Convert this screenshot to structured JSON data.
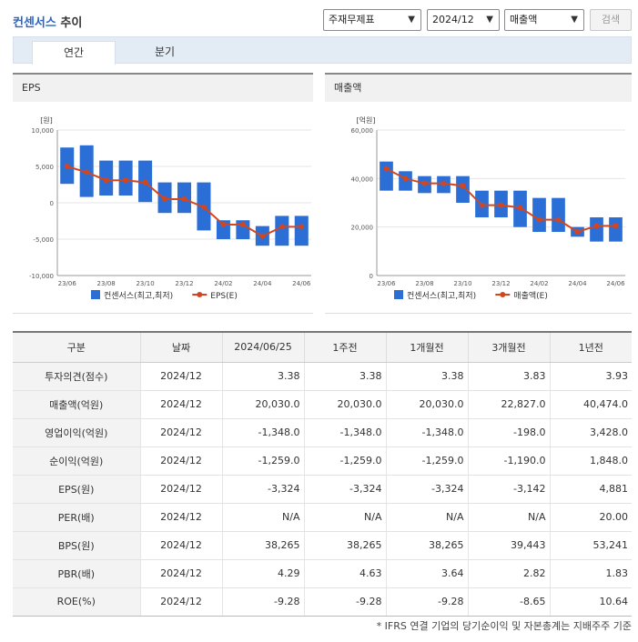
{
  "header": {
    "title_company": "컨센서스",
    "title_suffix": " 추이",
    "select_statement": "주재무제표",
    "select_period": "2024/12",
    "select_metric": "매출액",
    "search_button": "검색"
  },
  "tabs": [
    {
      "label": "연간",
      "active": true
    },
    {
      "label": "분기",
      "active": false
    }
  ],
  "charts": {
    "eps": {
      "panel_title": "EPS",
      "unit": "[원]",
      "y_ticks": [
        "10,000",
        "5,000",
        "0",
        "-5,000",
        "-10,000"
      ],
      "x_ticks": [
        "23/06",
        "23/08",
        "23/10",
        "23/12",
        "24/02",
        "24/04",
        "24/06"
      ],
      "legend_bar": "컨센서스(최고,최저)",
      "legend_line": "EPS(E)"
    },
    "sales": {
      "panel_title": "매출액",
      "unit": "[억원]",
      "y_ticks": [
        "60,000",
        "40,000",
        "20,000",
        "0"
      ],
      "x_ticks": [
        "23/06",
        "23/08",
        "23/10",
        "23/12",
        "24/02",
        "24/04",
        "24/06"
      ],
      "legend_bar": "컨센서스(최고,최저)",
      "legend_line": "매출액(E)"
    }
  },
  "chart_data": [
    {
      "type": "bar",
      "title": "EPS",
      "ylabel": "[원]",
      "ylim": [
        -10000,
        10000
      ],
      "x": [
        "23/06",
        "23/07",
        "23/08",
        "23/09",
        "23/10",
        "23/11",
        "23/12",
        "24/01",
        "24/02",
        "24/03",
        "24/04",
        "24/05",
        "24/06"
      ],
      "series": [
        {
          "name": "컨센서스(최고,최저)",
          "type": "range",
          "high": [
            7600,
            7900,
            5800,
            5800,
            5800,
            2800,
            2800,
            2800,
            -2400,
            -2400,
            -3200,
            -1800,
            -1800
          ],
          "low": [
            2600,
            800,
            1000,
            1000,
            100,
            -1400,
            -1400,
            -3800,
            -5000,
            -5000,
            -5900,
            -5900,
            -5900
          ]
        },
        {
          "name": "EPS(E)",
          "type": "line",
          "values": [
            5000,
            4200,
            3100,
            3100,
            2800,
            500,
            500,
            -600,
            -3000,
            -3000,
            -4600,
            -3300,
            -3300
          ]
        }
      ]
    },
    {
      "type": "bar",
      "title": "매출액",
      "ylabel": "[억원]",
      "ylim": [
        0,
        60000
      ],
      "x": [
        "23/06",
        "23/07",
        "23/08",
        "23/09",
        "23/10",
        "23/11",
        "23/12",
        "24/01",
        "24/02",
        "24/03",
        "24/04",
        "24/05",
        "24/06"
      ],
      "series": [
        {
          "name": "컨센서스(최고,최저)",
          "type": "range",
          "high": [
            47000,
            43000,
            41000,
            41000,
            41000,
            35000,
            35000,
            35000,
            32000,
            32000,
            20000,
            24000,
            24000
          ],
          "low": [
            35000,
            35000,
            34000,
            34000,
            30000,
            24000,
            24000,
            20000,
            18000,
            18000,
            16000,
            14000,
            14000
          ]
        },
        {
          "name": "매출액(E)",
          "type": "line",
          "values": [
            44000,
            40000,
            38000,
            38000,
            37000,
            29000,
            29000,
            28000,
            23000,
            23000,
            18000,
            20500,
            20500
          ]
        }
      ]
    }
  ],
  "table": {
    "headers": [
      "구분",
      "날짜",
      "2024/06/25",
      "1주전",
      "1개월전",
      "3개월전",
      "1년전"
    ],
    "rows": [
      {
        "label": "투자의견(점수)",
        "date": "2024/12",
        "values": [
          "3.38",
          "3.38",
          "3.38",
          "3.83",
          "3.93"
        ]
      },
      {
        "label": "매출액(억원)",
        "date": "2024/12",
        "values": [
          "20,030.0",
          "20,030.0",
          "20,030.0",
          "22,827.0",
          "40,474.0"
        ]
      },
      {
        "label": "영업이익(억원)",
        "date": "2024/12",
        "values": [
          "-1,348.0",
          "-1,348.0",
          "-1,348.0",
          "-198.0",
          "3,428.0"
        ]
      },
      {
        "label": "순이익(억원)",
        "date": "2024/12",
        "values": [
          "-1,259.0",
          "-1,259.0",
          "-1,259.0",
          "-1,190.0",
          "1,848.0"
        ]
      },
      {
        "label": "EPS(원)",
        "date": "2024/12",
        "values": [
          "-3,324",
          "-3,324",
          "-3,324",
          "-3,142",
          "4,881"
        ]
      },
      {
        "label": "PER(배)",
        "date": "2024/12",
        "values": [
          "N/A",
          "N/A",
          "N/A",
          "N/A",
          "20.00"
        ]
      },
      {
        "label": "BPS(원)",
        "date": "2024/12",
        "values": [
          "38,265",
          "38,265",
          "38,265",
          "39,443",
          "53,241"
        ]
      },
      {
        "label": "PBR(배)",
        "date": "2024/12",
        "values": [
          "4.29",
          "4.63",
          "3.64",
          "2.82",
          "1.83"
        ]
      },
      {
        "label": "ROE(%)",
        "date": "2024/12",
        "values": [
          "-9.28",
          "-9.28",
          "-9.28",
          "-8.65",
          "10.64"
        ]
      }
    ]
  },
  "footnote": "* IFRS 연결 기업의 당기순이익 및 자본총계는 지배주주 기준",
  "colors": {
    "bar": "#2b6fd6",
    "line": "#d2461f",
    "accent": "#2a63c4"
  },
  "icons": {
    "dropdown": "chevron-down-icon"
  }
}
